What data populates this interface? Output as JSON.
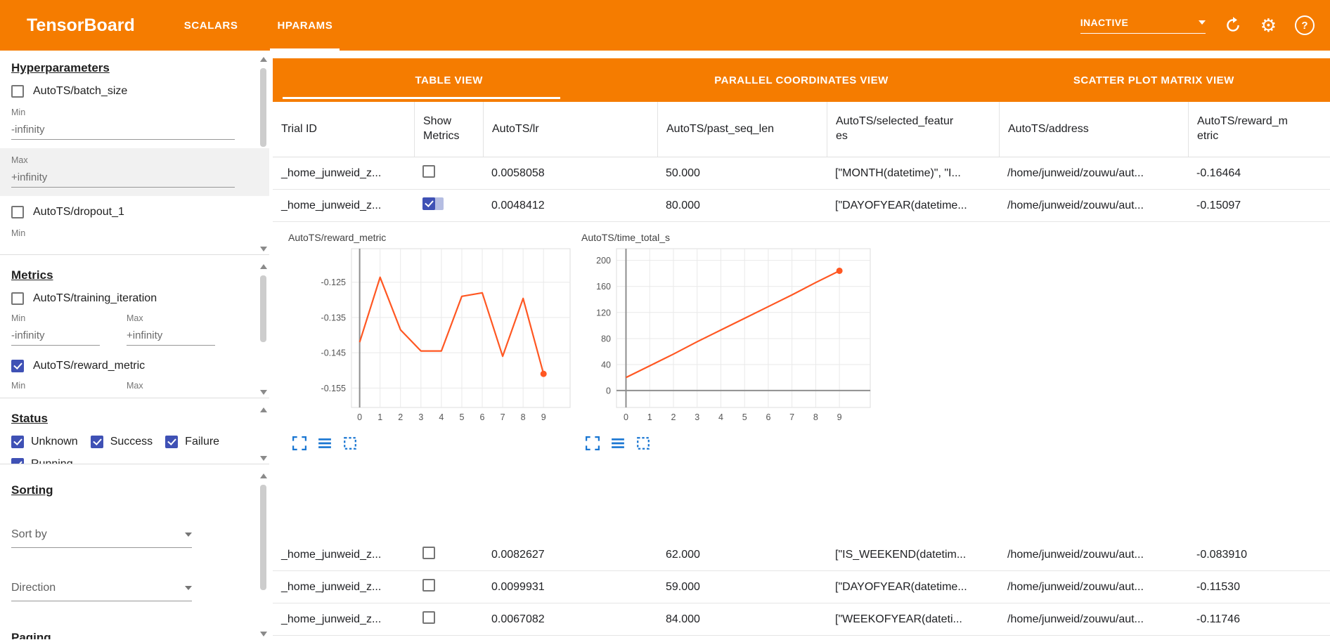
{
  "colors": {
    "header_orange": "#f57c00",
    "checkbox_blue": "#3f51b5",
    "chart_line_orange": "#ff5722",
    "tool_icon_blue": "#1976d2"
  },
  "header": {
    "title": "TensorBoard",
    "nav_tabs": [
      {
        "label": "SCALARS",
        "active": false
      },
      {
        "label": "HPARAMS",
        "active": true
      }
    ],
    "status_dropdown": {
      "value": "INACTIVE"
    },
    "icons": [
      "refresh-icon",
      "settings-icon",
      "help-icon"
    ]
  },
  "sidebar": {
    "hyperparameters": {
      "title": "Hyperparameters",
      "batch_size": {
        "label": "AutoTS/batch_size",
        "checked": false,
        "min_label": "Min",
        "min_value": "-infinity",
        "max_label": "Max",
        "max_value": "+infinity"
      },
      "dropout_1": {
        "label": "AutoTS/dropout_1",
        "checked": false,
        "min_label": "Min"
      }
    },
    "metrics": {
      "title": "Metrics",
      "training_iteration": {
        "label": "AutoTS/training_iteration",
        "checked": false,
        "min_label": "Min",
        "min_value": "-infinity",
        "max_label": "Max",
        "max_value": "+infinity"
      },
      "reward_metric": {
        "label": "AutoTS/reward_metric",
        "checked": true,
        "min_label": "Min",
        "max_label": "Max"
      }
    },
    "status": {
      "title": "Status",
      "items": [
        {
          "label": "Unknown",
          "checked": true
        },
        {
          "label": "Success",
          "checked": true
        },
        {
          "label": "Failure",
          "checked": true
        },
        {
          "label": "Running",
          "checked": true
        }
      ]
    },
    "sorting": {
      "title": "Sorting",
      "sort_by_label": "Sort by",
      "direction_label": "Direction"
    },
    "paging": {
      "title": "Paging"
    }
  },
  "main": {
    "view_tabs": [
      {
        "label": "TABLE VIEW",
        "active": true
      },
      {
        "label": "PARALLEL COORDINATES VIEW",
        "active": false
      },
      {
        "label": "SCATTER PLOT MATRIX VIEW",
        "active": false
      }
    ],
    "table": {
      "columns": [
        "Trial ID",
        "Show Metrics",
        "AutoTS/lr",
        "AutoTS/past_seq_len",
        "AutoTS/selected_features",
        "AutoTS/address",
        "AutoTS/reward_metric"
      ],
      "rows": [
        {
          "trial_id": "_home_junweid_z...",
          "show_metrics": false,
          "lr": "0.0058058",
          "past_seq_len": "50.000",
          "selected_features": "[\"MONTH(datetime)\", \"I...",
          "address": "/home/junweid/zouwu/aut...",
          "reward_metric": "-0.16464"
        },
        {
          "trial_id": "_home_junweid_z...",
          "show_metrics": true,
          "lr": "0.0048412",
          "past_seq_len": "80.000",
          "selected_features": "[\"DAYOFYEAR(datetime...",
          "address": "/home/junweid/zouwu/aut...",
          "reward_metric": "-0.15097"
        },
        {
          "trial_id": "_home_junweid_z...",
          "show_metrics": false,
          "lr": "0.0082627",
          "past_seq_len": "62.000",
          "selected_features": "[\"IS_WEEKEND(datetim...",
          "address": "/home/junweid/zouwu/aut...",
          "reward_metric": "-0.083910"
        },
        {
          "trial_id": "_home_junweid_z...",
          "show_metrics": false,
          "lr": "0.0099931",
          "past_seq_len": "59.000",
          "selected_features": "[\"DAYOFYEAR(datetime...",
          "address": "/home/junweid/zouwu/aut...",
          "reward_metric": "-0.11530"
        },
        {
          "trial_id": "_home_junweid_z...",
          "show_metrics": false,
          "lr": "0.0067082",
          "past_seq_len": "84.000",
          "selected_features": "[\"WEEKOFYEAR(dateti...",
          "address": "/home/junweid/zouwu/aut...",
          "reward_metric": "-0.11746"
        }
      ]
    }
  },
  "chart_data": [
    {
      "type": "line",
      "title": "AutoTS/reward_metric",
      "x": [
        0,
        1,
        2,
        3,
        4,
        5,
        6,
        7,
        8,
        9
      ],
      "values": [
        -0.142,
        -0.1236,
        -0.1385,
        -0.1445,
        -0.1445,
        -0.129,
        -0.128,
        -0.146,
        -0.1296,
        -0.15097
      ],
      "xlim": [
        -0.4,
        10.3
      ],
      "ylim": [
        -0.1605,
        -0.1155
      ],
      "yticks": [
        -0.125,
        -0.135,
        -0.145,
        -0.155
      ],
      "xticks": [
        0,
        1,
        2,
        3,
        4,
        5,
        6,
        7,
        8,
        9
      ],
      "line_color": "#ff5722",
      "end_marker": true,
      "zero_x_axis": true,
      "zero_y_axis": false,
      "grid": true,
      "legend": "none"
    },
    {
      "type": "line",
      "title": "AutoTS/time_total_s",
      "x": [
        0,
        1,
        2,
        3,
        4,
        5,
        6,
        7,
        8,
        9
      ],
      "values": [
        20,
        38,
        56,
        75,
        93,
        111,
        129,
        147,
        166,
        184
      ],
      "xlim": [
        -0.4,
        10.3
      ],
      "ylim": [
        -26,
        218
      ],
      "yticks": [
        0,
        40,
        80,
        120,
        160,
        200
      ],
      "xticks": [
        0,
        1,
        2,
        3,
        4,
        5,
        6,
        7,
        8,
        9
      ],
      "line_color": "#ff5722",
      "end_marker": true,
      "zero_x_axis": true,
      "zero_y_axis": true,
      "grid": true,
      "legend": "none"
    }
  ]
}
